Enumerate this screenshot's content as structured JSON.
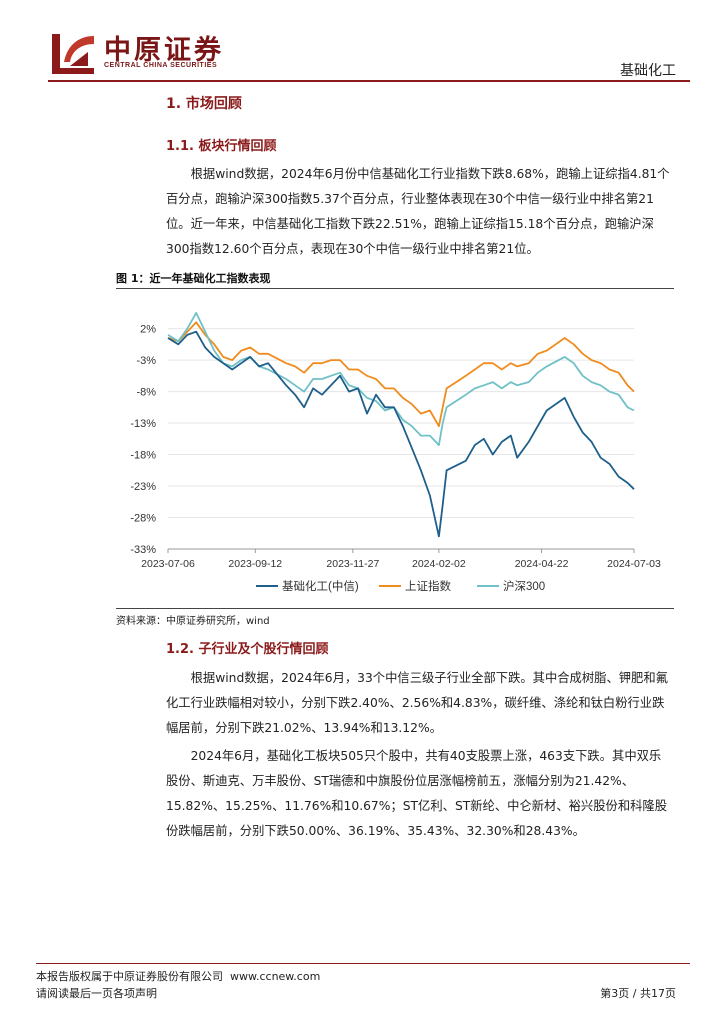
{
  "header": {
    "logo_cn": "中原证券",
    "logo_en": "CENTRAL CHINA SECURITIES",
    "section": "基础化工"
  },
  "sections": {
    "h1": "1. 市场回顾",
    "h1_1": "1.1. 板块行情回顾",
    "h1_2": "1.2. 子行业及个股行情回顾"
  },
  "paragraphs": {
    "p1": "根据wind数据，2024年6月份中信基础化工行业指数下跌8.68%，跑输上证综指4.81个百分点，跑输沪深300指数5.37个百分点，行业整体表现在30个中信一级行业中排名第21位。近一年来，中信基础化工指数下跌22.51%，跑输上证综指15.18个百分点，跑输沪深300指数12.60个百分点，表现在30个中信一级行业中排名第21位。",
    "p2": "根据wind数据，2024年6月，33个中信三级子行业全部下跌。其中合成树脂、钾肥和氟化工行业跌幅相对较小，分别下跌2.40%、2.56%和4.83%，碳纤维、涤纶和钛白粉行业跌幅居前，分别下跌21.02%、13.94%和13.12%。",
    "p3": "2024年6月，基础化工板块505只个股中，共有40支股票上涨，463支下跌。其中双乐股份、斯迪克、万丰股份、ST瑞德和中旗股份位居涨幅榜前五，涨幅分别为21.42%、15.82%、15.25%、11.76%和10.67%；ST亿利、ST新纶、中仑新材、裕兴股份和科隆股份跌幅居前，分别下跌50.00%、36.19%、35.43%、32.30%和28.43%。"
  },
  "figure": {
    "title": "图 1：近一年基础化工指数表现",
    "source": "资料来源：中原证券研究所，wind"
  },
  "chart_data": {
    "type": "line",
    "x_ticks": [
      "2023-07-06",
      "2023-09-12",
      "2023-11-27",
      "2024-02-02",
      "2024-04-22",
      "2024-07-03"
    ],
    "y_ticks": [
      "2%",
      "-3%",
      "-8%",
      "-13%",
      "-18%",
      "-23%",
      "-28%",
      "-33%"
    ],
    "ylim": [
      -33,
      4
    ],
    "legend_position": "bottom",
    "series": [
      {
        "name": "基础化工(中信)",
        "color": "#1f5f8b",
        "x": [
          "2023-07-06",
          "2023-07-14",
          "2023-07-21",
          "2023-07-28",
          "2023-08-04",
          "2023-08-11",
          "2023-08-18",
          "2023-08-25",
          "2023-09-01",
          "2023-09-08",
          "2023-09-15",
          "2023-09-22",
          "2023-10-06",
          "2023-10-13",
          "2023-10-20",
          "2023-10-27",
          "2023-11-03",
          "2023-11-10",
          "2023-11-17",
          "2023-11-24",
          "2023-12-01",
          "2023-12-08",
          "2023-12-15",
          "2023-12-22",
          "2023-12-29",
          "2024-01-05",
          "2024-01-12",
          "2024-01-19",
          "2024-01-26",
          "2024-02-02",
          "2024-02-05",
          "2024-02-08",
          "2024-02-23",
          "2024-03-01",
          "2024-03-08",
          "2024-03-15",
          "2024-03-22",
          "2024-03-29",
          "2024-04-03",
          "2024-04-12",
          "2024-04-19",
          "2024-04-26",
          "2024-05-10",
          "2024-05-17",
          "2024-05-24",
          "2024-05-31",
          "2024-06-07",
          "2024-06-14",
          "2024-06-21",
          "2024-06-28",
          "2024-07-03"
        ],
        "values": [
          0.5,
          -0.5,
          1.0,
          1.5,
          -1.0,
          -2.5,
          -3.5,
          -4.5,
          -3.5,
          -2.5,
          -4.0,
          -3.5,
          -7.0,
          -8.5,
          -10.5,
          -7.5,
          -8.5,
          -7.0,
          -5.5,
          -8.0,
          -7.5,
          -11.5,
          -8.5,
          -10.5,
          -10.5,
          -13.5,
          -17.0,
          -20.5,
          -24.5,
          -31.0,
          -26.0,
          -20.5,
          -19.0,
          -16.5,
          -15.5,
          -18.0,
          -16.0,
          -15.0,
          -18.5,
          -16.0,
          -13.5,
          -11.0,
          -9.0,
          -12.0,
          -14.5,
          -16.0,
          -18.5,
          -19.5,
          -21.5,
          -22.5,
          -23.5
        ]
      },
      {
        "name": "上证指数",
        "color": "#f08c1e",
        "x": [
          "2023-07-06",
          "2023-07-14",
          "2023-07-21",
          "2023-07-28",
          "2023-08-04",
          "2023-08-11",
          "2023-08-18",
          "2023-08-25",
          "2023-09-01",
          "2023-09-08",
          "2023-09-15",
          "2023-09-22",
          "2023-10-06",
          "2023-10-13",
          "2023-10-20",
          "2023-10-27",
          "2023-11-03",
          "2023-11-10",
          "2023-11-17",
          "2023-11-24",
          "2023-12-01",
          "2023-12-08",
          "2023-12-15",
          "2023-12-22",
          "2023-12-29",
          "2024-01-05",
          "2024-01-12",
          "2024-01-19",
          "2024-01-26",
          "2024-02-02",
          "2024-02-05",
          "2024-02-08",
          "2024-02-23",
          "2024-03-01",
          "2024-03-08",
          "2024-03-15",
          "2024-03-22",
          "2024-03-29",
          "2024-04-03",
          "2024-04-12",
          "2024-04-19",
          "2024-04-26",
          "2024-05-10",
          "2024-05-17",
          "2024-05-24",
          "2024-05-31",
          "2024-06-07",
          "2024-06-14",
          "2024-06-21",
          "2024-06-28",
          "2024-07-03"
        ],
        "values": [
          0.5,
          0.0,
          1.5,
          3.0,
          1.0,
          -0.5,
          -2.5,
          -3.0,
          -1.5,
          -1.0,
          -2.0,
          -2.0,
          -3.5,
          -4.0,
          -5.0,
          -3.5,
          -3.5,
          -3.0,
          -3.0,
          -4.5,
          -4.5,
          -5.5,
          -6.0,
          -7.5,
          -7.5,
          -9.0,
          -10.0,
          -11.5,
          -11.0,
          -13.5,
          -10.5,
          -7.5,
          -5.5,
          -4.5,
          -3.5,
          -3.5,
          -4.5,
          -3.5,
          -4.0,
          -3.5,
          -2.0,
          -1.5,
          0.5,
          -0.5,
          -2.0,
          -3.0,
          -3.5,
          -4.5,
          -5.0,
          -7.0,
          -8.0
        ]
      },
      {
        "name": "沪深300",
        "color": "#6fc1c7",
        "x": [
          "2023-07-06",
          "2023-07-14",
          "2023-07-21",
          "2023-07-28",
          "2023-08-04",
          "2023-08-11",
          "2023-08-18",
          "2023-08-25",
          "2023-09-01",
          "2023-09-08",
          "2023-09-15",
          "2023-09-22",
          "2023-10-06",
          "2023-10-13",
          "2023-10-20",
          "2023-10-27",
          "2023-11-03",
          "2023-11-10",
          "2023-11-17",
          "2023-11-24",
          "2023-12-01",
          "2023-12-08",
          "2023-12-15",
          "2023-12-22",
          "2023-12-29",
          "2024-01-05",
          "2024-01-12",
          "2024-01-19",
          "2024-01-26",
          "2024-02-02",
          "2024-02-05",
          "2024-02-08",
          "2024-02-23",
          "2024-03-01",
          "2024-03-08",
          "2024-03-15",
          "2024-03-22",
          "2024-03-29",
          "2024-04-03",
          "2024-04-12",
          "2024-04-19",
          "2024-04-26",
          "2024-05-10",
          "2024-05-17",
          "2024-05-24",
          "2024-05-31",
          "2024-06-07",
          "2024-06-14",
          "2024-06-21",
          "2024-06-28",
          "2024-07-03"
        ],
        "values": [
          1.0,
          0.0,
          2.0,
          4.5,
          1.5,
          -1.5,
          -3.5,
          -4.0,
          -3.0,
          -2.5,
          -4.0,
          -4.5,
          -6.0,
          -7.0,
          -8.0,
          -6.0,
          -6.0,
          -5.5,
          -5.0,
          -7.0,
          -7.5,
          -9.0,
          -9.5,
          -11.0,
          -10.5,
          -12.5,
          -13.5,
          -15.0,
          -15.0,
          -16.5,
          -13.0,
          -10.5,
          -8.5,
          -7.5,
          -7.0,
          -6.5,
          -7.5,
          -6.5,
          -7.0,
          -6.5,
          -5.0,
          -4.0,
          -2.5,
          -3.5,
          -5.5,
          -6.5,
          -7.0,
          -8.0,
          -8.5,
          -10.5,
          -11.0
        ]
      }
    ]
  },
  "footer": {
    "copyright": "本报告版权属于中原证券股份有限公司",
    "website": "www.ccnew.com",
    "disclaimer": "请阅读最后一页各项声明",
    "page": "第3页 / 共17页"
  }
}
